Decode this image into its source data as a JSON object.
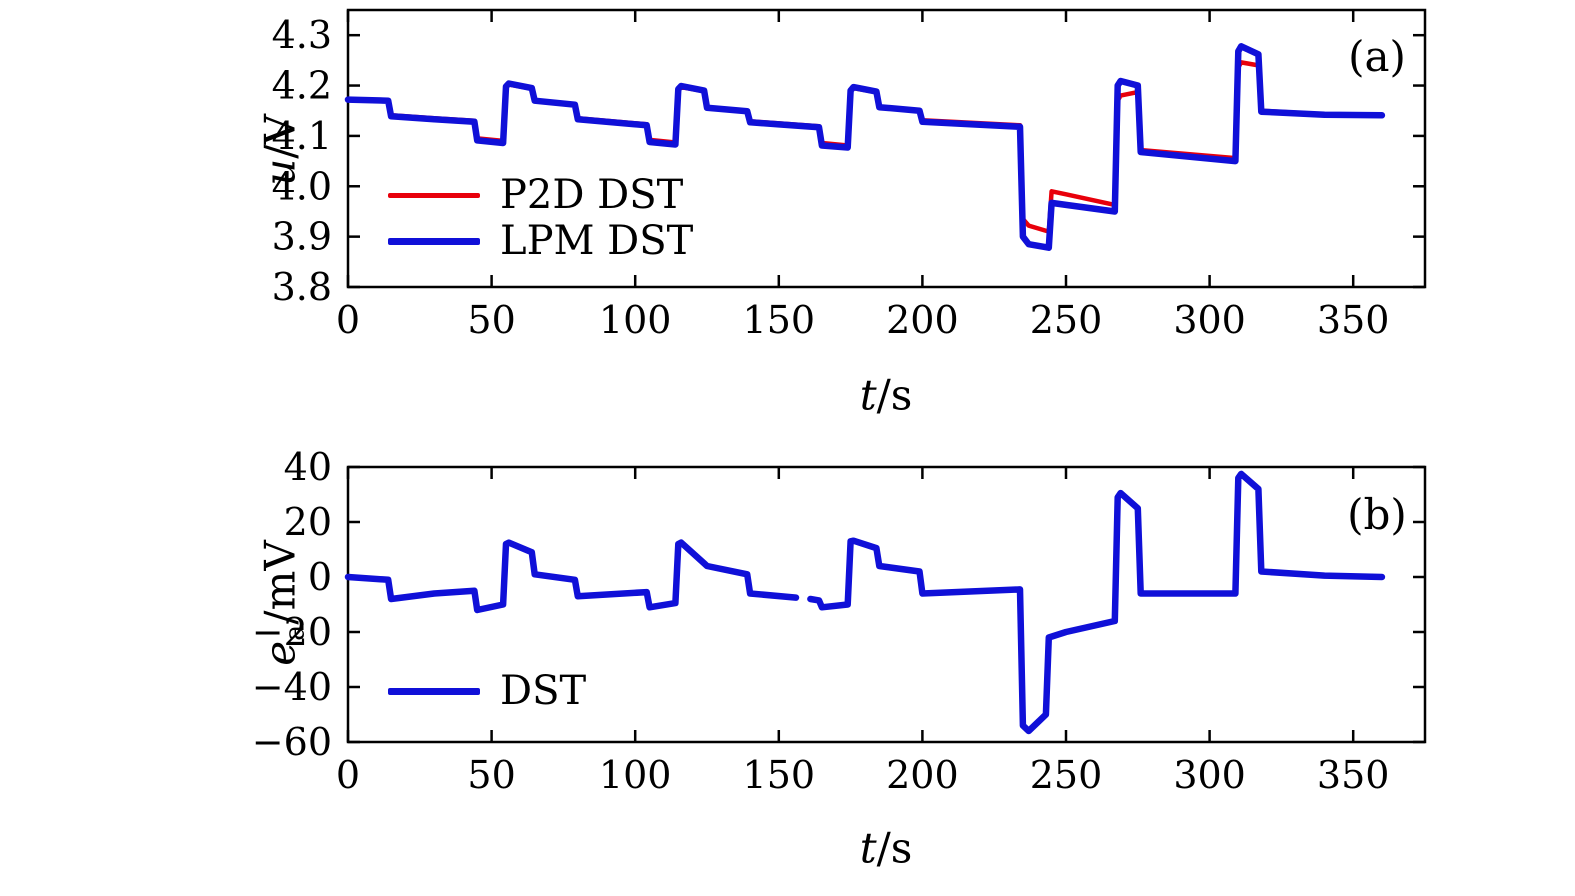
{
  "figure": {
    "background": "#ffffff",
    "axis_color": "#000000"
  },
  "chart_data": [
    {
      "type": "line",
      "panel_label": "(a)",
      "xlabel": {
        "var": "t",
        "sub": "",
        "unit": "/s",
        "text": "t/s"
      },
      "ylabel": {
        "var": "u",
        "sub": "",
        "unit": "/V",
        "text": "u/V"
      },
      "xlim": [
        0,
        375
      ],
      "ylim": [
        3.8,
        4.35
      ],
      "xticks": [
        0,
        50,
        100,
        150,
        200,
        250,
        300,
        350
      ],
      "xticklabels": [
        "0",
        "50",
        "100",
        "150",
        "200",
        "250",
        "300",
        "350"
      ],
      "yticks": [
        3.8,
        3.9,
        4.0,
        4.1,
        4.2,
        4.3
      ],
      "yticklabels": [
        "3.8",
        "3.9",
        "4.0",
        "4.1",
        "4.2",
        "4.3"
      ],
      "grid": false,
      "legend_position": "center-left",
      "legend": [
        {
          "name": "P2D DST",
          "color": "#e8000b",
          "thickness": 5
        },
        {
          "name": "LPM DST",
          "color": "#1010d8",
          "thickness": 7
        }
      ],
      "series": [
        {
          "name": "P2D DST",
          "color": "#e8000b",
          "width": 4.5,
          "points": [
            [
              0,
              4.172
            ],
            [
              14,
              4.17
            ],
            [
              15,
              4.141
            ],
            [
              30,
              4.135
            ],
            [
              44,
              4.13
            ],
            [
              45,
              4.095
            ],
            [
              54,
              4.09
            ],
            [
              55,
              4.196
            ],
            [
              56,
              4.202
            ],
            [
              64,
              4.194
            ],
            [
              65,
              4.17
            ],
            [
              79,
              4.163
            ],
            [
              80,
              4.135
            ],
            [
              104,
              4.123
            ],
            [
              105,
              4.092
            ],
            [
              114,
              4.087
            ],
            [
              115,
              4.191
            ],
            [
              116,
              4.197
            ],
            [
              124,
              4.189
            ],
            [
              125,
              4.157
            ],
            [
              139,
              4.15
            ],
            [
              140,
              4.129
            ],
            [
              164,
              4.119
            ],
            [
              165,
              4.086
            ],
            [
              174,
              4.081
            ],
            [
              175,
              4.188
            ],
            [
              176,
              4.195
            ],
            [
              184,
              4.187
            ],
            [
              185,
              4.158
            ],
            [
              199,
              4.151
            ],
            [
              200,
              4.131
            ],
            [
              234,
              4.121
            ],
            [
              235,
              3.935
            ],
            [
              237,
              3.922
            ],
            [
              244,
              3.91
            ],
            [
              245,
              3.99
            ],
            [
              250,
              3.984
            ],
            [
              267,
              3.963
            ],
            [
              268,
              4.17
            ],
            [
              269,
              4.18
            ],
            [
              275,
              4.187
            ],
            [
              276,
              4.072
            ],
            [
              309,
              4.056
            ],
            [
              310,
              4.236
            ],
            [
              311,
              4.246
            ],
            [
              317,
              4.24
            ],
            [
              318,
              4.15
            ],
            [
              340,
              4.143
            ],
            [
              360,
              4.141
            ]
          ]
        },
        {
          "name": "LPM DST",
          "color": "#1010d8",
          "width": 6.5,
          "points": [
            [
              0,
              4.172
            ],
            [
              14,
              4.17
            ],
            [
              15,
              4.139
            ],
            [
              30,
              4.133
            ],
            [
              44,
              4.128
            ],
            [
              45,
              4.091
            ],
            [
              54,
              4.086
            ],
            [
              55,
              4.198
            ],
            [
              56,
              4.204
            ],
            [
              64,
              4.195
            ],
            [
              65,
              4.17
            ],
            [
              79,
              4.162
            ],
            [
              80,
              4.133
            ],
            [
              104,
              4.121
            ],
            [
              105,
              4.088
            ],
            [
              114,
              4.083
            ],
            [
              115,
              4.193
            ],
            [
              116,
              4.199
            ],
            [
              124,
              4.19
            ],
            [
              125,
              4.156
            ],
            [
              139,
              4.149
            ],
            [
              140,
              4.127
            ],
            [
              164,
              4.117
            ],
            [
              165,
              4.081
            ],
            [
              174,
              4.077
            ],
            [
              175,
              4.19
            ],
            [
              176,
              4.197
            ],
            [
              184,
              4.188
            ],
            [
              185,
              4.157
            ],
            [
              199,
              4.15
            ],
            [
              200,
              4.128
            ],
            [
              234,
              4.118
            ],
            [
              235,
              3.9
            ],
            [
              237,
              3.885
            ],
            [
              244,
              3.878
            ],
            [
              245,
              3.967
            ],
            [
              250,
              3.963
            ],
            [
              267,
              3.95
            ],
            [
              268,
              4.2
            ],
            [
              269,
              4.209
            ],
            [
              275,
              4.2
            ],
            [
              276,
              4.068
            ],
            [
              309,
              4.05
            ],
            [
              310,
              4.268
            ],
            [
              311,
              4.278
            ],
            [
              317,
              4.262
            ],
            [
              318,
              4.148
            ],
            [
              340,
              4.142
            ],
            [
              360,
              4.141
            ]
          ]
        }
      ]
    },
    {
      "type": "line",
      "panel_label": "(b)",
      "xlabel": {
        "var": "t",
        "sub": "",
        "unit": "/s",
        "text": "t/s"
      },
      "ylabel": {
        "var": "e",
        "sub": "a",
        "unit": "/mV",
        "text": "ea/mV"
      },
      "xlim": [
        0,
        375
      ],
      "ylim": [
        -60,
        40
      ],
      "xticks": [
        0,
        50,
        100,
        150,
        200,
        250,
        300,
        350
      ],
      "xticklabels": [
        "0",
        "50",
        "100",
        "150",
        "200",
        "250",
        "300",
        "350"
      ],
      "yticks": [
        -60,
        -40,
        -20,
        0,
        20,
        40
      ],
      "yticklabels": [
        "−60",
        "−40",
        "−20",
        "0",
        "20",
        "40"
      ],
      "grid": false,
      "legend_position": "bottom-left",
      "legend": [
        {
          "name": "DST",
          "color": "#1010d8",
          "thickness": 7
        }
      ],
      "series": [
        {
          "name": "DST",
          "color": "#1010d8",
          "width": 6.5,
          "points": [
            [
              0,
              0
            ],
            [
              14,
              -1
            ],
            [
              15,
              -8
            ],
            [
              30,
              -6
            ],
            [
              44,
              -5
            ],
            [
              45,
              -12
            ],
            [
              54,
              -10
            ],
            [
              55,
              12
            ],
            [
              56,
              12.5
            ],
            [
              64,
              9
            ],
            [
              65,
              1
            ],
            [
              79,
              -1
            ],
            [
              80,
              -7
            ],
            [
              104,
              -5.5
            ],
            [
              105,
              -11
            ],
            [
              114,
              -9.5
            ],
            [
              115,
              12
            ],
            [
              116,
              12.5
            ],
            [
              124,
              5
            ],
            [
              125,
              4
            ],
            [
              139,
              1
            ],
            [
              140,
              -6
            ],
            [
              156,
              -7.5
            ],
            null,
            [
              161,
              -8
            ],
            [
              164,
              -8.5
            ],
            [
              165,
              -11
            ],
            [
              174,
              -10
            ],
            [
              175,
              13
            ],
            [
              176,
              13.2
            ],
            [
              184,
              10.5
            ],
            [
              185,
              4
            ],
            [
              199,
              2
            ],
            [
              200,
              -6
            ],
            [
              234,
              -4.5
            ],
            [
              235,
              -54
            ],
            [
              237,
              -56
            ],
            [
              243,
              -50
            ],
            [
              244,
              -22
            ],
            [
              250,
              -20
            ],
            [
              267,
              -16
            ],
            [
              268,
              29
            ],
            [
              269,
              30.5
            ],
            [
              275,
              25
            ],
            [
              276,
              -6
            ],
            [
              309,
              -6
            ],
            [
              310,
              36
            ],
            [
              311,
              37.5
            ],
            [
              317,
              32
            ],
            [
              318,
              2
            ],
            [
              340,
              0.5
            ],
            [
              360,
              0
            ]
          ]
        }
      ]
    }
  ]
}
